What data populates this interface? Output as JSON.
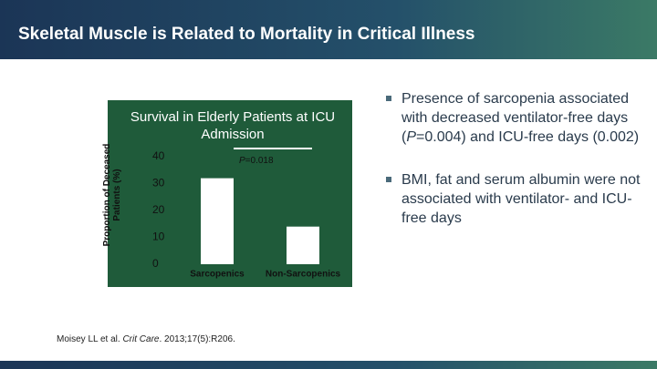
{
  "slide": {
    "title": "Skeletal Muscle is Related to Mortality in Critical Illness",
    "bullets": [
      [
        "Presence of sarcopenia associated with decreased ventilator-free days (",
        "P",
        "=0.004) and ICU-free days (0.002)"
      ],
      [
        "BMI, fat and serum albumin were not associated with ventilator- and ICU-free days"
      ]
    ],
    "citation": [
      "Moisey LL et al. ",
      "Crit Care",
      ". 2013;17(5):R206."
    ]
  },
  "chart_data": {
    "type": "bar",
    "title": "Survival in Elderly Patients at ICU Admission",
    "y_label": "Proportion of Deceased Patients (%)",
    "categories": [
      "Sarcopenics",
      "Non-Sarcopenics"
    ],
    "values": [
      32,
      14
    ],
    "color": "#ffffff",
    "ylim": [
      0,
      40
    ],
    "yticks": [
      0,
      10,
      20,
      30,
      40
    ],
    "annotation": [
      "P",
      "=0.018"
    ]
  }
}
